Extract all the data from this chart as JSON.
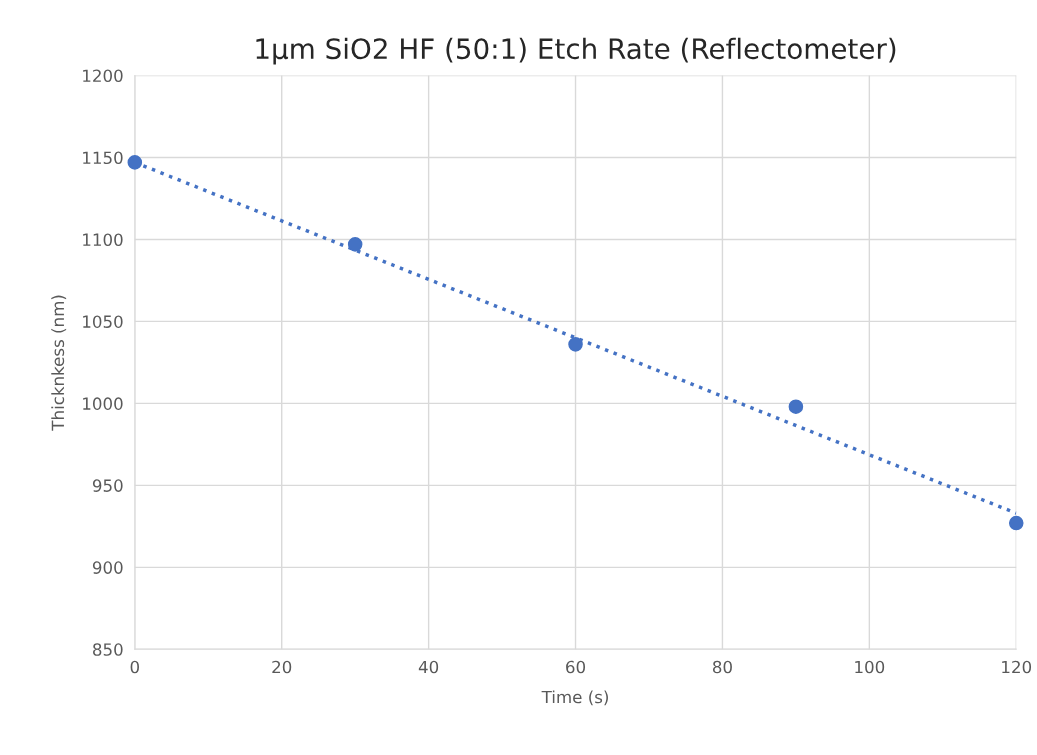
{
  "chart_data": {
    "type": "scatter",
    "title": "1µm SiO2 HF (50:1) Etch Rate (Reflectometer)",
    "xlabel": "Time (s)",
    "ylabel": "Thicknkess (nm)",
    "xlim": [
      0,
      120
    ],
    "xticks": [
      0,
      20,
      40,
      60,
      80,
      100,
      120
    ],
    "ylim": [
      850,
      1200
    ],
    "yticks": [
      850,
      900,
      950,
      1000,
      1050,
      1100,
      1150,
      1200
    ],
    "grid": true,
    "series": [
      {
        "marker": "circle",
        "color": "#4472c4",
        "x": [
          0,
          30,
          60,
          90,
          120
        ],
        "values": [
          1147,
          1097,
          1036,
          998,
          927
        ]
      },
      {
        "type": "line",
        "color": "#4472c4",
        "line_style": "dotted",
        "marker": "none",
        "x": [
          0,
          120
        ],
        "values": [
          1147,
          933
        ]
      }
    ]
  }
}
